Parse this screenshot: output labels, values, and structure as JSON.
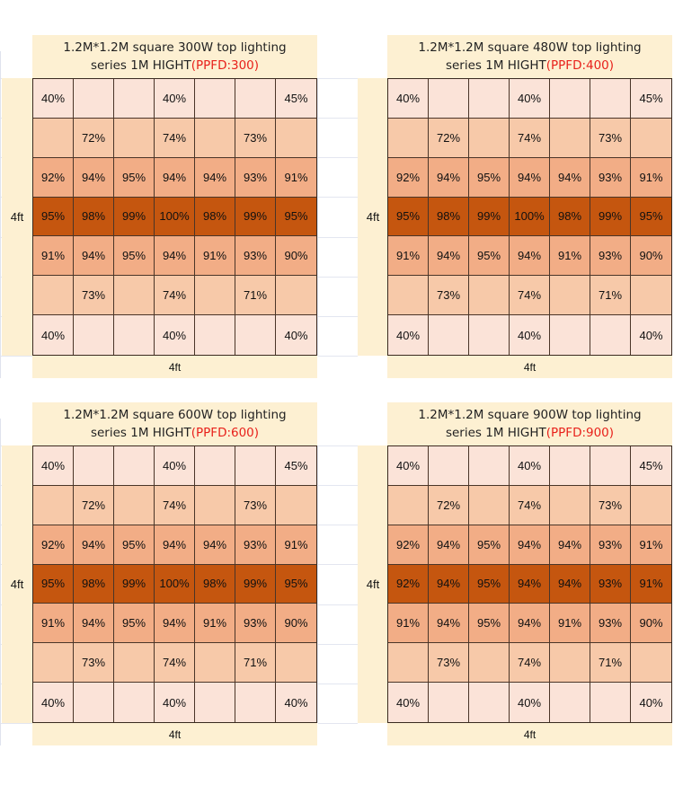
{
  "chart_data": [
    {
      "type": "heatmap",
      "title_line1": "1.2M*1.2M square 300W top lighting",
      "title_line2": "series 1M HIGHT",
      "title_ppfd": "(PPFD:300)",
      "xlabel": "4ft",
      "ylabel": "4ft",
      "rows": [
        [
          "40%",
          "",
          "",
          "40%",
          "",
          "",
          "45%"
        ],
        [
          "",
          "72%",
          "",
          "74%",
          "",
          "73%",
          ""
        ],
        [
          "92%",
          "94%",
          "95%",
          "94%",
          "94%",
          "93%",
          "91%"
        ],
        [
          "95%",
          "98%",
          "99%",
          "100%",
          "98%",
          "99%",
          "95%"
        ],
        [
          "91%",
          "94%",
          "95%",
          "94%",
          "91%",
          "93%",
          "90%"
        ],
        [
          "",
          "73%",
          "",
          "74%",
          "",
          "71%",
          ""
        ],
        [
          "40%",
          "",
          "",
          "40%",
          "",
          "",
          "40%"
        ]
      ]
    },
    {
      "type": "heatmap",
      "title_line1": "1.2M*1.2M square 480W top lighting",
      "title_line2": "series 1M HIGHT",
      "title_ppfd": "(PPFD:400)",
      "xlabel": "4ft",
      "ylabel": "4ft",
      "rows": [
        [
          "40%",
          "",
          "",
          "40%",
          "",
          "",
          "45%"
        ],
        [
          "",
          "72%",
          "",
          "74%",
          "",
          "73%",
          ""
        ],
        [
          "92%",
          "94%",
          "95%",
          "94%",
          "94%",
          "93%",
          "91%"
        ],
        [
          "95%",
          "98%",
          "99%",
          "100%",
          "98%",
          "99%",
          "95%"
        ],
        [
          "91%",
          "94%",
          "95%",
          "94%",
          "91%",
          "93%",
          "90%"
        ],
        [
          "",
          "73%",
          "",
          "74%",
          "",
          "71%",
          ""
        ],
        [
          "40%",
          "",
          "",
          "40%",
          "",
          "",
          "40%"
        ]
      ]
    },
    {
      "type": "heatmap",
      "title_line1": "1.2M*1.2M square 600W top lighting",
      "title_line2": "series 1M HIGHT",
      "title_ppfd": "(PPFD:600)",
      "xlabel": "4ft",
      "ylabel": "4ft",
      "rows": [
        [
          "40%",
          "",
          "",
          "40%",
          "",
          "",
          "45%"
        ],
        [
          "",
          "72%",
          "",
          "74%",
          "",
          "73%",
          ""
        ],
        [
          "92%",
          "94%",
          "95%",
          "94%",
          "94%",
          "93%",
          "91%"
        ],
        [
          "95%",
          "98%",
          "99%",
          "100%",
          "98%",
          "99%",
          "95%"
        ],
        [
          "91%",
          "94%",
          "95%",
          "94%",
          "91%",
          "93%",
          "90%"
        ],
        [
          "",
          "73%",
          "",
          "74%",
          "",
          "71%",
          ""
        ],
        [
          "40%",
          "",
          "",
          "40%",
          "",
          "",
          "40%"
        ]
      ]
    },
    {
      "type": "heatmap",
      "title_line1": "1.2M*1.2M square 900W top lighting",
      "title_line2": "series 1M HIGHT",
      "title_ppfd": "(PPFD:900)",
      "xlabel": "4ft",
      "ylabel": "4ft",
      "rows": [
        [
          "40%",
          "",
          "",
          "40%",
          "",
          "",
          "45%"
        ],
        [
          "",
          "72%",
          "",
          "74%",
          "",
          "73%",
          ""
        ],
        [
          "92%",
          "94%",
          "95%",
          "94%",
          "94%",
          "93%",
          "91%"
        ],
        [
          "92%",
          "94%",
          "95%",
          "94%",
          "94%",
          "93%",
          "91%"
        ],
        [
          "91%",
          "94%",
          "95%",
          "94%",
          "91%",
          "93%",
          "90%"
        ],
        [
          "",
          "73%",
          "",
          "74%",
          "",
          "71%",
          ""
        ],
        [
          "40%",
          "",
          "",
          "40%",
          "",
          "",
          "40%"
        ]
      ]
    }
  ],
  "row_colors": [
    "#fbe3d8",
    "#f7c9a9",
    "#f2ad86",
    "#c5560f",
    "#f2ad86",
    "#f7c9a9",
    "#fbe3d8"
  ],
  "colors": {
    "label_bg": "#fdf0d2",
    "ppfd_text": "#e8211b",
    "grid_line": "#4a3528"
  }
}
